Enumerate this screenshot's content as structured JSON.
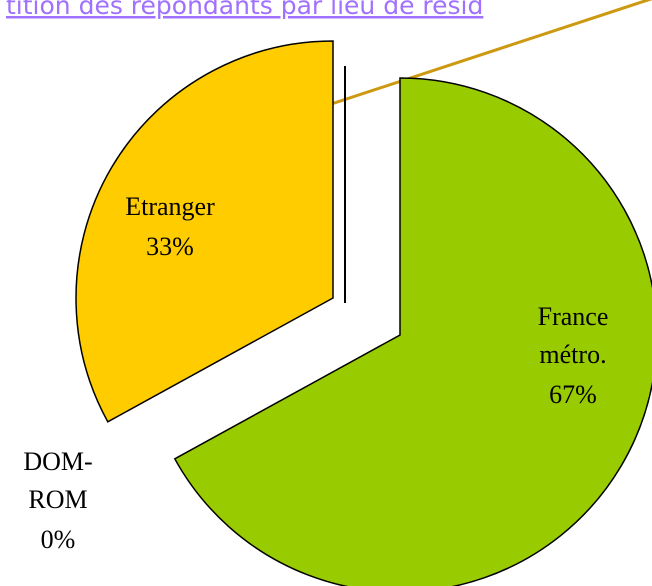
{
  "chart_data": {
    "type": "pie",
    "title": "tition des répondants par lieu de résid",
    "categories": [
      "France métro.",
      "Etranger",
      "DOM-ROM"
    ],
    "values": [
      67,
      33,
      0
    ],
    "value_labels": [
      "67%",
      "33%",
      "0%"
    ],
    "colors": [
      "#99cc00",
      "#ffcc00",
      "#000000"
    ]
  }
}
